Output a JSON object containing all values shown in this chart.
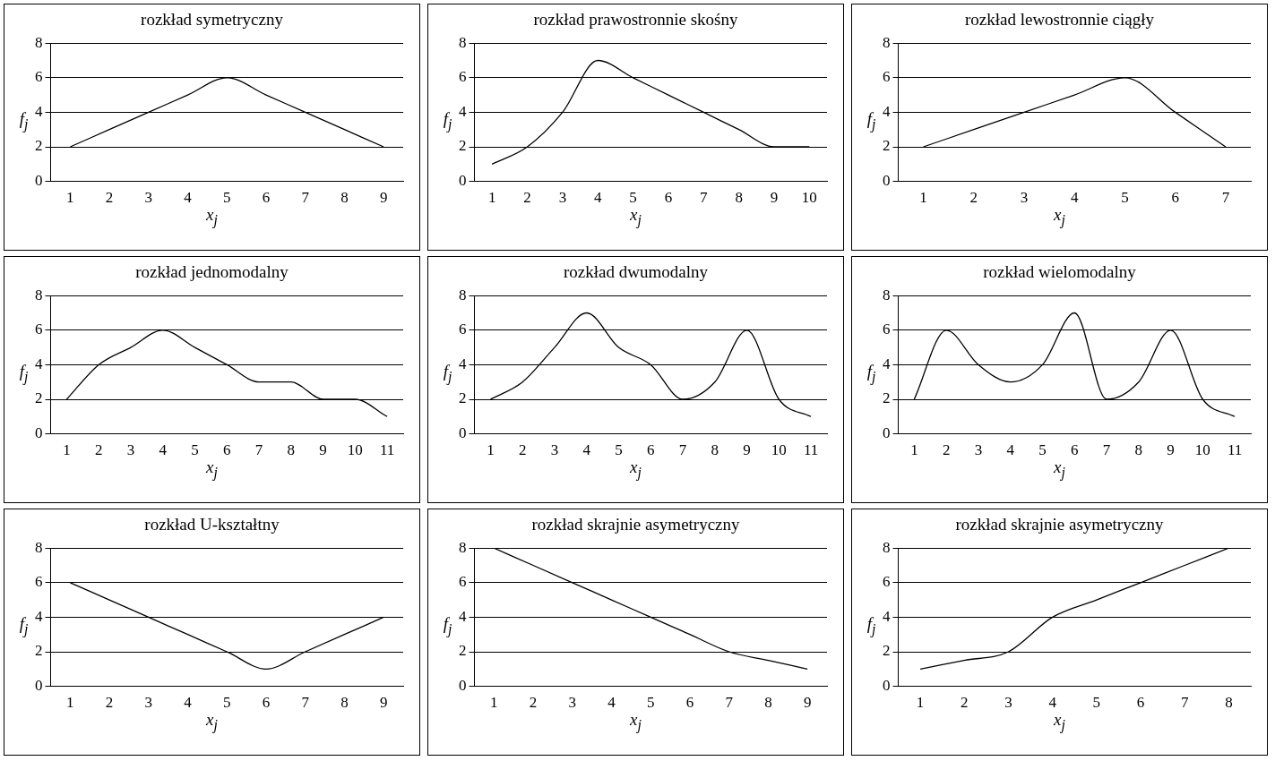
{
  "chart_data": [
    {
      "type": "line",
      "title": "rozkład symetryczny",
      "xlabel": "x$_{j}$",
      "ylabel": "f$_{j}$",
      "categories": [
        "1",
        "2",
        "3",
        "4",
        "5",
        "6",
        "7",
        "8",
        "9"
      ],
      "series": [
        {
          "color": "#000000",
          "values": [
            2,
            3,
            4,
            5,
            6,
            5,
            4,
            3,
            2
          ]
        }
      ],
      "ylim": [
        0,
        8
      ],
      "yticks": [
        0,
        2,
        4,
        6,
        8
      ],
      "grid": "y",
      "marker": "none",
      "legend": false
    },
    {
      "type": "line",
      "title": "rozkład prawostronnie skośny",
      "xlabel": "x$_{j}$",
      "ylabel": "f$_{j}$",
      "categories": [
        "1",
        "2",
        "3",
        "4",
        "5",
        "6",
        "7",
        "8",
        "9",
        "10"
      ],
      "series": [
        {
          "color": "#000000",
          "values": [
            1,
            2,
            4,
            7,
            6,
            5,
            4,
            3,
            2,
            2
          ]
        }
      ],
      "ylim": [
        0,
        8
      ],
      "yticks": [
        0,
        2,
        4,
        6,
        8
      ],
      "grid": "y",
      "marker": "none",
      "legend": false
    },
    {
      "type": "line",
      "title": "rozkład lewostronnie ciągły",
      "xlabel": "x$_{j}$",
      "ylabel": "f$_{j}$",
      "categories": [
        "1",
        "2",
        "3",
        "4",
        "5",
        "6",
        "7"
      ],
      "series": [
        {
          "color": "#000000",
          "values": [
            2,
            3,
            4,
            5,
            6,
            4,
            2
          ]
        }
      ],
      "ylim": [
        0,
        8
      ],
      "yticks": [
        0,
        2,
        4,
        6,
        8
      ],
      "grid": "y",
      "marker": "none",
      "legend": false
    },
    {
      "type": "line",
      "title": "rozkład jednomodalny",
      "xlabel": "x$_{j}$",
      "ylabel": "f$_{j}$",
      "categories": [
        "1",
        "2",
        "3",
        "4",
        "5",
        "6",
        "7",
        "8",
        "9",
        "10",
        "11"
      ],
      "series": [
        {
          "color": "#000000",
          "values": [
            2,
            4,
            5,
            6,
            5,
            4,
            3,
            3,
            2,
            2,
            1
          ]
        }
      ],
      "ylim": [
        0,
        8
      ],
      "yticks": [
        0,
        2,
        4,
        6,
        8
      ],
      "grid": "y",
      "marker": "none",
      "legend": false
    },
    {
      "type": "line",
      "title": "rozkład dwumodalny",
      "xlabel": "x$_{j}$",
      "ylabel": "f$_{j}$",
      "categories": [
        "1",
        "2",
        "3",
        "4",
        "5",
        "6",
        "7",
        "8",
        "9",
        "10",
        "11"
      ],
      "series": [
        {
          "color": "#000000",
          "values": [
            2,
            3,
            5,
            7,
            5,
            4,
            2,
            3,
            6,
            2,
            1
          ]
        }
      ],
      "ylim": [
        0,
        8
      ],
      "yticks": [
        0,
        2,
        4,
        6,
        8
      ],
      "grid": "y",
      "marker": "none",
      "legend": false
    },
    {
      "type": "line",
      "title": "rozkład wielomodalny",
      "xlabel": "x$_{j}$",
      "ylabel": "f$_{j}$",
      "categories": [
        "1",
        "2",
        "3",
        "4",
        "5",
        "6",
        "7",
        "8",
        "9",
        "10",
        "11"
      ],
      "series": [
        {
          "color": "#000000",
          "values": [
            2,
            6,
            4,
            3,
            4,
            7,
            2,
            3,
            6,
            2,
            1
          ]
        }
      ],
      "ylim": [
        0,
        8
      ],
      "yticks": [
        0,
        2,
        4,
        6,
        8
      ],
      "grid": "y",
      "marker": "none",
      "legend": false
    },
    {
      "type": "line",
      "title": "rozkład U-kształtny",
      "xlabel": "x$_{j}$",
      "ylabel": "f$_{j}$",
      "categories": [
        "1",
        "2",
        "3",
        "4",
        "5",
        "6",
        "7",
        "8",
        "9"
      ],
      "series": [
        {
          "color": "#000000",
          "values": [
            6,
            5,
            4,
            3,
            2,
            1,
            2,
            3,
            4
          ]
        }
      ],
      "ylim": [
        0,
        8
      ],
      "yticks": [
        0,
        2,
        4,
        6,
        8
      ],
      "grid": "y",
      "marker": "none",
      "legend": false
    },
    {
      "type": "line",
      "title": "rozkład skrajnie asymetryczny",
      "xlabel": "x$_{j}$",
      "ylabel": "f$_{j}$",
      "categories": [
        "1",
        "2",
        "3",
        "4",
        "5",
        "6",
        "7",
        "8",
        "9"
      ],
      "series": [
        {
          "color": "#000000",
          "values": [
            8,
            7,
            6,
            5,
            4,
            3,
            2,
            1.5,
            1
          ]
        }
      ],
      "ylim": [
        0,
        8
      ],
      "yticks": [
        0,
        2,
        4,
        6,
        8
      ],
      "grid": "y",
      "marker": "none",
      "legend": false
    },
    {
      "type": "line",
      "title": "rozkład skrajnie asymetryczny",
      "xlabel": "x$_{j}$",
      "ylabel": "f$_{j}$",
      "categories": [
        "1",
        "2",
        "3",
        "4",
        "5",
        "6",
        "7",
        "8"
      ],
      "series": [
        {
          "color": "#000000",
          "values": [
            1,
            1.5,
            2,
            4,
            5,
            6,
            7,
            8
          ]
        }
      ],
      "ylim": [
        0,
        8
      ],
      "yticks": [
        0,
        2,
        4,
        6,
        8
      ],
      "grid": "y",
      "marker": "none",
      "legend": false
    }
  ]
}
